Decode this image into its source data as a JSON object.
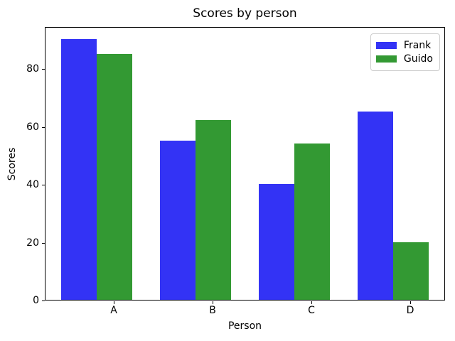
{
  "chart_data": {
    "type": "bar",
    "title": "Scores by person",
    "xlabel": "Person",
    "ylabel": "Scores",
    "categories": [
      "A",
      "B",
      "C",
      "D"
    ],
    "series": [
      {
        "name": "Frank",
        "color": "#3333f5",
        "values": [
          90,
          55,
          40,
          65
        ]
      },
      {
        "name": "Guido",
        "color": "#339933",
        "values": [
          85,
          62,
          54,
          20
        ]
      }
    ],
    "ylim": [
      0,
      94.5
    ],
    "yticks": [
      0,
      20,
      40,
      60,
      80
    ],
    "grid": false,
    "legend_position": "upper right",
    "background_color": "#ffffff",
    "axis_color": "#000000"
  }
}
